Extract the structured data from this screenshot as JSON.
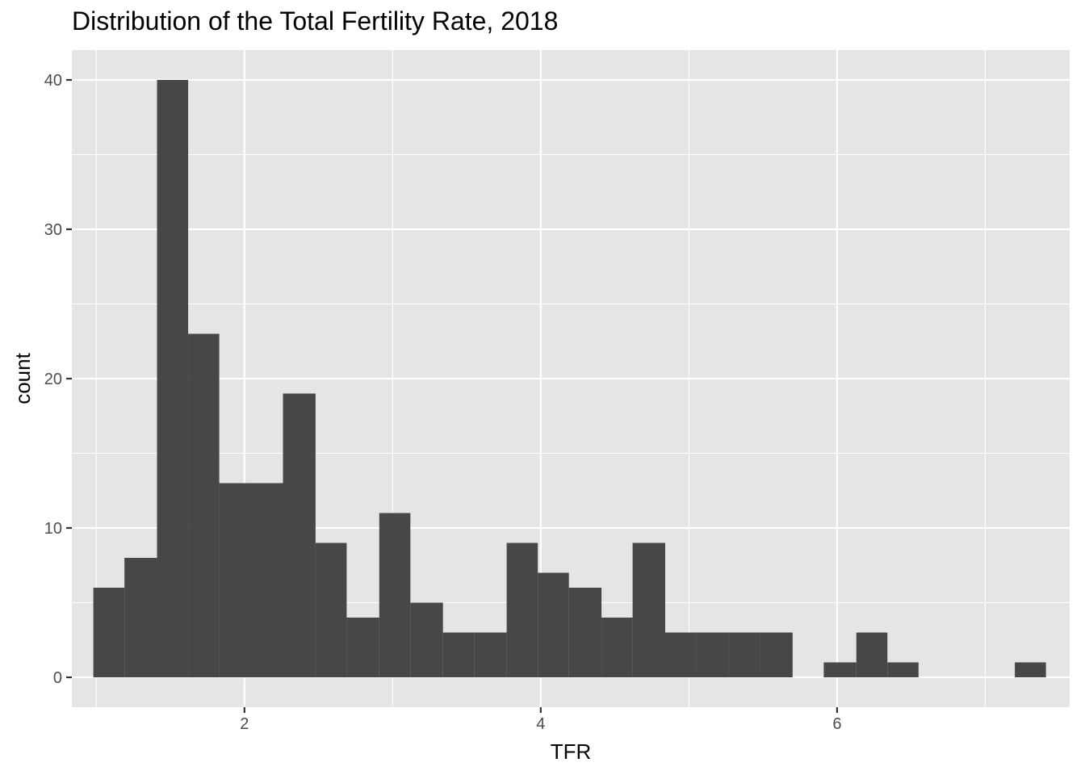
{
  "chart_data": {
    "type": "bar",
    "title": "Distribution of the Total Fertility Rate, 2018",
    "xlabel": "TFR",
    "ylabel": "count",
    "xlim": [
      0.835,
      7.57
    ],
    "ylim": [
      -2,
      42
    ],
    "xticks": [
      2,
      4,
      6
    ],
    "xminor": [
      1,
      3,
      5,
      7
    ],
    "yticks": [
      0,
      10,
      20,
      30,
      40
    ],
    "yminor": [
      5,
      15,
      25,
      35
    ],
    "grid": true,
    "bins": [
      {
        "x0": 0.98,
        "x1": 1.19,
        "count": 6
      },
      {
        "x0": 1.19,
        "x1": 1.41,
        "count": 8
      },
      {
        "x0": 1.41,
        "x1": 1.62,
        "count": 40
      },
      {
        "x0": 1.62,
        "x1": 1.83,
        "count": 23
      },
      {
        "x0": 1.83,
        "x1": 2.05,
        "count": 13
      },
      {
        "x0": 2.05,
        "x1": 2.26,
        "count": 13
      },
      {
        "x0": 2.26,
        "x1": 2.48,
        "count": 19
      },
      {
        "x0": 2.48,
        "x1": 2.69,
        "count": 9
      },
      {
        "x0": 2.69,
        "x1": 2.91,
        "count": 4
      },
      {
        "x0": 2.91,
        "x1": 3.12,
        "count": 11
      },
      {
        "x0": 3.12,
        "x1": 3.34,
        "count": 5
      },
      {
        "x0": 3.34,
        "x1": 3.55,
        "count": 3
      },
      {
        "x0": 3.55,
        "x1": 3.77,
        "count": 3
      },
      {
        "x0": 3.77,
        "x1": 3.98,
        "count": 9
      },
      {
        "x0": 3.98,
        "x1": 4.19,
        "count": 7
      },
      {
        "x0": 4.19,
        "x1": 4.41,
        "count": 6
      },
      {
        "x0": 4.41,
        "x1": 4.62,
        "count": 4
      },
      {
        "x0": 4.62,
        "x1": 4.84,
        "count": 9
      },
      {
        "x0": 4.84,
        "x1": 5.05,
        "count": 3
      },
      {
        "x0": 5.05,
        "x1": 5.27,
        "count": 3
      },
      {
        "x0": 5.27,
        "x1": 5.48,
        "count": 3
      },
      {
        "x0": 5.48,
        "x1": 5.7,
        "count": 3
      },
      {
        "x0": 5.7,
        "x1": 5.91,
        "count": 0
      },
      {
        "x0": 5.91,
        "x1": 6.13,
        "count": 1
      },
      {
        "x0": 6.13,
        "x1": 6.34,
        "count": 3
      },
      {
        "x0": 6.34,
        "x1": 6.55,
        "count": 1
      },
      {
        "x0": 6.55,
        "x1": 6.77,
        "count": 0
      },
      {
        "x0": 6.77,
        "x1": 6.98,
        "count": 0
      },
      {
        "x0": 6.98,
        "x1": 7.2,
        "count": 0
      },
      {
        "x0": 7.2,
        "x1": 7.41,
        "count": 1
      }
    ],
    "colors": {
      "panel": "#e5e5e5",
      "grid": "#ffffff",
      "bar": "#474747",
      "tick_text": "#4d4d4d",
      "axis_text": "#000000"
    }
  }
}
